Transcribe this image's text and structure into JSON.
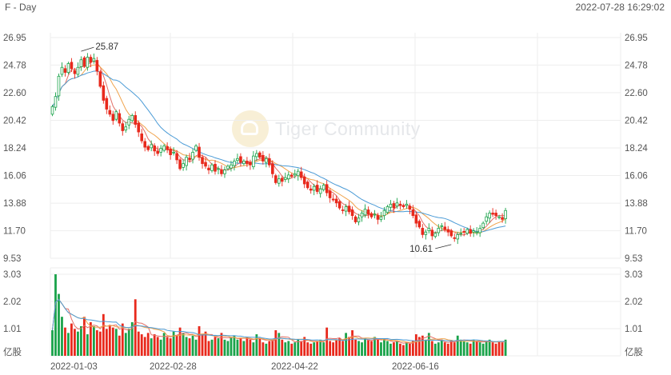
{
  "header": {
    "symbol": "F - Day",
    "timestamp": "2022-07-28 16:29:02"
  },
  "watermark": {
    "text": "Tiger Community"
  },
  "colors": {
    "up": "#1aa34a",
    "down": "#e8291c",
    "ma1": "#e36f67",
    "ma2": "#f0a24a",
    "ma3": "#4b9bd6",
    "grid": "#eeeeee"
  },
  "chart_data": {
    "type": "candlestick",
    "price_axis": {
      "ticks": [
        26.95,
        24.78,
        22.6,
        20.42,
        18.24,
        16.06,
        13.88,
        11.7,
        9.53
      ],
      "labels": [
        "26.95",
        "24.78",
        "22.60",
        "20.42",
        "18.24",
        "16.06",
        "13.88",
        "11.70",
        "9.53"
      ]
    },
    "volume_axis": {
      "ticks": [
        3.03,
        2.02,
        1.01
      ],
      "labels": [
        "3.03",
        "2.02",
        "1.01"
      ],
      "unit": "亿股"
    },
    "date_labels": [
      "2022-01-03",
      "2022-02-28",
      "2022-04-22",
      "2022-06-16"
    ],
    "annotations": {
      "high_label": "25.87",
      "low_label": "10.61",
      "high_value": 25.87,
      "low_value": 10.61
    },
    "closes": [
      21.5,
      22.3,
      23.9,
      24.6,
      24.2,
      24.9,
      24.5,
      24.1,
      24.6,
      25.2,
      24.7,
      25.4,
      25.0,
      25.3,
      24.3,
      23.1,
      22.0,
      21.3,
      20.9,
      20.4,
      21.1,
      20.2,
      19.6,
      19.9,
      20.5,
      20.8,
      20.1,
      19.5,
      18.8,
      18.3,
      18.1,
      18.5,
      18.0,
      17.8,
      18.2,
      18.4,
      18.1,
      17.7,
      17.9,
      17.3,
      16.6,
      17.0,
      17.5,
      17.3,
      17.9,
      18.4,
      17.5,
      17.0,
      16.8,
      16.5,
      16.9,
      16.4,
      16.6,
      16.2,
      16.5,
      16.8,
      16.9,
      17.2,
      17.4,
      17.1,
      17.2,
      17.0,
      16.9,
      17.6,
      17.8,
      17.5,
      17.2,
      17.4,
      16.9,
      16.2,
      15.5,
      15.8,
      15.6,
      15.9,
      16.1,
      16.0,
      16.2,
      16.4,
      15.9,
      15.4,
      15.1,
      14.9,
      15.2,
      14.8,
      15.0,
      15.3,
      14.7,
      14.3,
      14.2,
      13.9,
      13.5,
      13.3,
      13.6,
      13.2,
      12.9,
      12.4,
      12.7,
      13.1,
      13.4,
      13.0,
      12.8,
      13.0,
      12.6,
      12.8,
      13.3,
      13.6,
      13.8,
      13.5,
      13.9,
      13.7,
      13.6,
      13.8,
      13.4,
      12.9,
      12.3,
      12.0,
      11.4,
      11.6,
      11.9,
      11.3,
      11.5,
      11.9,
      12.1,
      11.8,
      11.6,
      11.3,
      11.1,
      11.4,
      11.5,
      11.6,
      11.8,
      11.5,
      11.7,
      11.6,
      11.9,
      12.3,
      12.8,
      13.1,
      13.0,
      12.9,
      12.8,
      12.6,
      13.3
    ],
    "volumes": [
      0.95,
      3.03,
      2.3,
      1.45,
      1.05,
      0.85,
      1.2,
      1.0,
      0.9,
      1.1,
      1.45,
      0.8,
      1.25,
      1.1,
      0.95,
      0.9,
      1.55,
      1.0,
      1.15,
      1.05,
      1.0,
      0.75,
      1.2,
      0.85,
      1.0,
      1.25,
      2.1,
      0.9,
      0.8,
      0.7,
      0.85,
      0.65,
      0.8,
      0.7,
      0.6,
      0.85,
      0.7,
      0.65,
      0.9,
      0.75,
      1.05,
      0.85,
      0.7,
      0.65,
      0.75,
      0.6,
      1.1,
      0.8,
      0.9,
      0.55,
      0.6,
      0.7,
      0.65,
      0.85,
      0.6,
      0.55,
      0.7,
      0.75,
      0.6,
      0.65,
      0.55,
      0.7,
      0.6,
      0.5,
      0.8,
      0.65,
      0.5,
      0.45,
      0.55,
      0.6,
      0.95,
      0.85,
      0.6,
      0.5,
      0.55,
      0.45,
      0.5,
      0.6,
      0.55,
      0.7,
      0.5,
      0.45,
      0.5,
      0.55,
      0.6,
      0.5,
      1.05,
      0.55,
      0.5,
      0.6,
      0.65,
      0.55,
      0.85,
      0.7,
      0.95,
      0.6,
      0.55,
      0.5,
      0.65,
      0.6,
      0.55,
      0.7,
      0.6,
      0.5,
      0.65,
      0.55,
      0.45,
      0.5,
      0.55,
      0.45,
      0.4,
      0.5,
      0.45,
      0.55,
      0.8,
      0.7,
      0.75,
      0.6,
      0.85,
      0.55,
      0.45,
      0.5,
      0.6,
      0.5,
      0.45,
      0.55,
      0.5,
      0.75,
      0.6,
      0.55,
      0.5,
      0.45,
      0.6,
      0.55,
      0.5,
      0.45,
      0.55,
      0.6,
      0.5,
      0.45,
      0.55,
      0.5,
      0.6
    ]
  }
}
